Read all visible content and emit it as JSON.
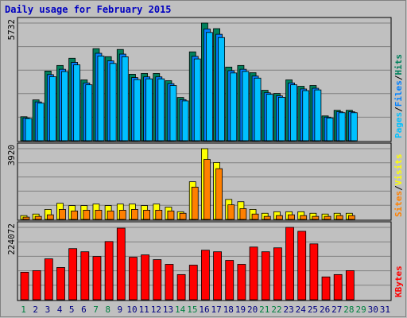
{
  "chart_data": [
    {
      "type": "bar",
      "title": "Daily usage for February 2015",
      "categories": [
        "1",
        "2",
        "3",
        "4",
        "5",
        "6",
        "7",
        "8",
        "9",
        "10",
        "11",
        "12",
        "13",
        "14",
        "15",
        "16",
        "17",
        "18",
        "19",
        "20",
        "21",
        "22",
        "23",
        "24",
        "25",
        "26",
        "27",
        "28",
        "29",
        "30",
        "31"
      ],
      "ylim": [
        0,
        5732
      ],
      "yticks": [
        5732
      ],
      "legend_separator": "/",
      "series": [
        {
          "name": "Hits",
          "color": "#00805c",
          "values": [
            1170,
            1989,
            3393,
            3666,
            4017,
            2964,
            4485,
            4095,
            4446,
            3237,
            3276,
            3276,
            2925,
            2106,
            4329,
            5732,
            5460,
            3588,
            3666,
            3315,
            2457,
            2301,
            2964,
            2652,
            2691,
            1209,
            1482,
            1482,
            null,
            null,
            null
          ]
        },
        {
          "name": "Files",
          "color": "#0080ff",
          "values": [
            1110,
            1890,
            3220,
            3480,
            3815,
            2815,
            4260,
            3890,
            4220,
            3075,
            3110,
            3110,
            2780,
            2000,
            4110,
            5445,
            5185,
            3410,
            3480,
            3150,
            2335,
            2185,
            2815,
            2520,
            2555,
            1150,
            1410,
            1410,
            null,
            null,
            null
          ]
        },
        {
          "name": "Pages",
          "color": "#00c0ff",
          "values": [
            1080,
            1830,
            3120,
            3370,
            3695,
            2725,
            4125,
            3765,
            4090,
            2980,
            3015,
            3015,
            2690,
            1940,
            3985,
            5275,
            5025,
            3300,
            3375,
            3050,
            2260,
            2115,
            2725,
            2440,
            2475,
            1110,
            1365,
            1365,
            null,
            null,
            null
          ]
        }
      ]
    },
    {
      "type": "bar",
      "ylim": [
        0,
        3920
      ],
      "yticks": [
        3920
      ],
      "legend_separator": "/",
      "series": [
        {
          "name": "Visits",
          "color": "#ffff00",
          "values": [
            213,
            298,
            554,
            895,
            767,
            767,
            852,
            767,
            852,
            852,
            767,
            852,
            682,
            426,
            2087,
            3920,
            3153,
            1108,
            980,
            554,
            341,
            426,
            426,
            426,
            341,
            298,
            341,
            341,
            null,
            null,
            null
          ]
        },
        {
          "name": "Sites",
          "color": "#ff8000",
          "values": [
            128,
            170,
            256,
            554,
            469,
            511,
            511,
            469,
            511,
            554,
            511,
            511,
            469,
            341,
            1790,
            3323,
            2811,
            809,
            596,
            298,
            170,
            213,
            256,
            213,
            170,
            170,
            213,
            213,
            null,
            null,
            null
          ]
        }
      ]
    },
    {
      "type": "bar",
      "ylim": [
        0,
        224072
      ],
      "yticks": [
        224072
      ],
      "weekend_categories": [
        "1",
        "7",
        "8",
        "14",
        "15",
        "21",
        "22",
        "28",
        "29"
      ],
      "weekend_color": "#008040",
      "weekday_color": "#000080",
      "series": [
        {
          "name": "KBytes",
          "color": "#ff0000",
          "values": [
            85225,
            90095,
            126620,
            99835,
            158275,
            148535,
            133925,
            180190,
            221585,
            131490,
            138795,
            124185,
            109575,
            77920,
            107140,
            153405,
            148535,
            121750,
            109575,
            163145,
            148535,
            160710,
            224072,
            211900,
            172885,
            70615,
            77920,
            90095,
            null,
            null,
            null
          ]
        }
      ]
    }
  ]
}
